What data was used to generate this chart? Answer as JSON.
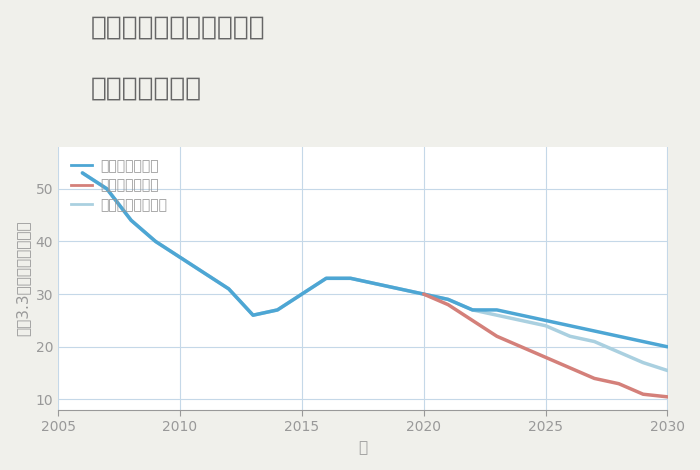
{
  "title_line1": "愛知県田原市東神戸町の",
  "title_line2": "土地の価格推移",
  "xlabel": "年",
  "ylabel": "坪（3.3㎡）単価（万円）",
  "background_color": "#f0f0eb",
  "plot_background_color": "#ffffff",
  "grid_color": "#c5d8e8",
  "xlim": [
    2005,
    2030
  ],
  "ylim": [
    8,
    58
  ],
  "yticks": [
    10,
    20,
    30,
    40,
    50
  ],
  "xticks": [
    2005,
    2010,
    2015,
    2020,
    2025,
    2030
  ],
  "good_scenario": {
    "label": "グッドシナリオ",
    "color": "#4da6d4",
    "linewidth": 2.5,
    "x": [
      2006,
      2007,
      2008,
      2009,
      2010,
      2011,
      2012,
      2013,
      2014,
      2015,
      2016,
      2017,
      2018,
      2019,
      2020,
      2021,
      2022,
      2023,
      2024,
      2025,
      2026,
      2027,
      2028,
      2029,
      2030
    ],
    "y": [
      53,
      50,
      44,
      40,
      37,
      34,
      31,
      26,
      27,
      30,
      33,
      33,
      32,
      31,
      30,
      29,
      27,
      27,
      26,
      25,
      24,
      23,
      22,
      21,
      20
    ]
  },
  "bad_scenario": {
    "label": "バッドシナリオ",
    "color": "#d4807a",
    "linewidth": 2.5,
    "x": [
      2020,
      2021,
      2022,
      2023,
      2024,
      2025,
      2026,
      2027,
      2028,
      2029,
      2030
    ],
    "y": [
      30,
      28,
      25,
      22,
      20,
      18,
      16,
      14,
      13,
      11,
      10.5
    ]
  },
  "normal_scenario": {
    "label": "ノーマルシナリオ",
    "color": "#aad0e0",
    "linewidth": 2.5,
    "x": [
      2006,
      2007,
      2008,
      2009,
      2010,
      2011,
      2012,
      2013,
      2014,
      2015,
      2016,
      2017,
      2018,
      2019,
      2020,
      2021,
      2022,
      2023,
      2024,
      2025,
      2026,
      2027,
      2028,
      2029,
      2030
    ],
    "y": [
      53,
      50,
      44,
      40,
      37,
      34,
      31,
      26,
      27,
      30,
      33,
      33,
      32,
      31,
      30,
      29,
      27,
      26,
      25,
      24,
      22,
      21,
      19,
      17,
      15.5
    ]
  },
  "title_fontsize": 19,
  "axis_label_fontsize": 11,
  "tick_fontsize": 10,
  "legend_fontsize": 10,
  "title_color": "#666666",
  "axis_color": "#999999",
  "tick_color": "#999999"
}
